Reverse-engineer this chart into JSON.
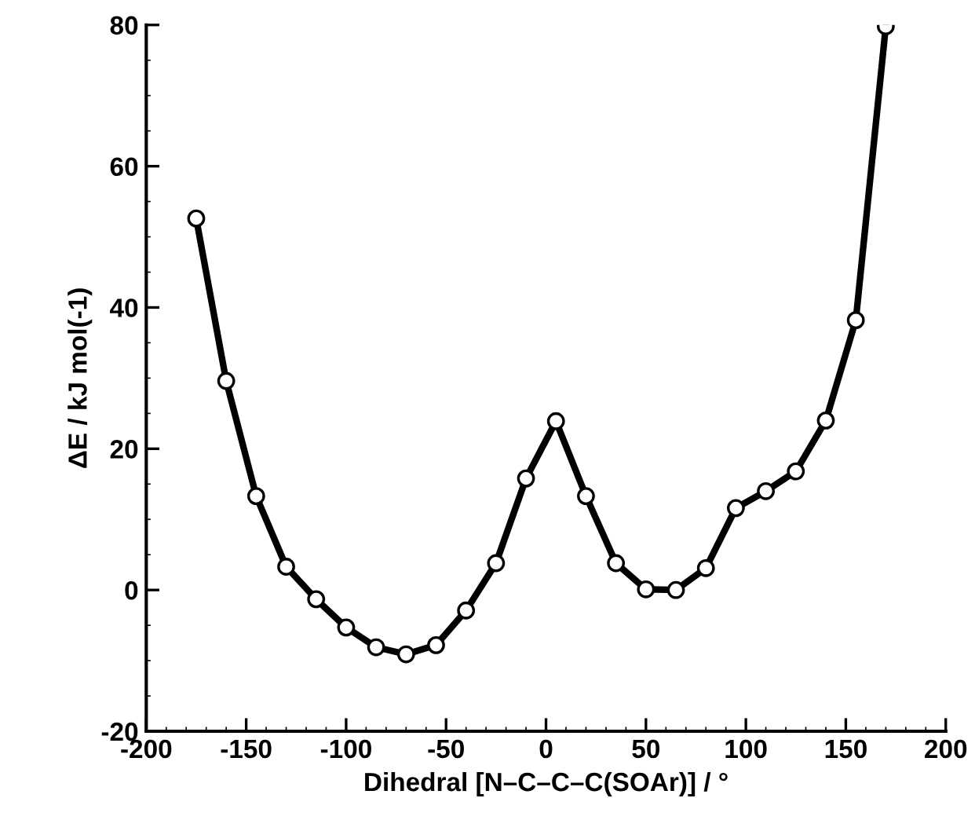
{
  "chart_data": {
    "type": "line",
    "xlabel": "Dihedral [N–C–C–C(SOAr)] / °",
    "ylabel": "ΔE / kJ mol(-1)",
    "x": [
      -175,
      -160,
      -145,
      -130,
      -115,
      -100,
      -85,
      -70,
      -55,
      -40,
      -25,
      -10,
      5,
      20,
      35,
      50,
      65,
      80,
      95,
      110,
      125,
      140,
      155,
      170
    ],
    "series": [
      {
        "color": "#000000",
        "values": [
          52.6,
          29.6,
          13.3,
          3.3,
          -1.3,
          -5.3,
          -8.1,
          -9.1,
          -7.8,
          -2.9,
          3.8,
          15.8,
          23.9,
          13.3,
          3.8,
          0.1,
          0.0,
          3.1,
          11.6,
          14.0,
          16.8,
          24.0,
          38.2,
          79.8
        ]
      }
    ],
    "xlim": [
      -200,
      200
    ],
    "ylim": [
      -20,
      80
    ],
    "xticks": [
      -200,
      -150,
      -100,
      -50,
      0,
      50,
      100,
      150,
      200
    ],
    "yticks": [
      -20,
      0,
      20,
      40,
      60,
      80
    ],
    "marker": "circle",
    "line_style": "solid",
    "grid": false,
    "legend": false
  }
}
